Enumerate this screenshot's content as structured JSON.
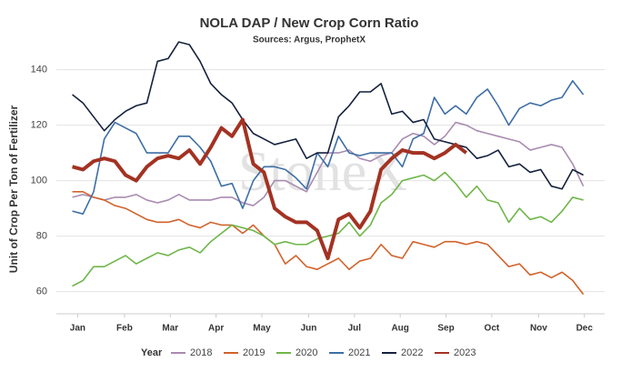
{
  "chart_data": {
    "type": "line",
    "title": "NOLA DAP / New Crop Corn Ratio",
    "subtitle": "Sources: Argus, ProphetX",
    "y_label": "Unit of Crop Per Ton of Fertilizer",
    "watermark": "StoneX",
    "legend_title": "Year",
    "legend": "bottom",
    "grid": true,
    "xlim": [
      0.5,
      52
    ],
    "xticks": [
      {
        "value": 2.5,
        "label": "Jan"
      },
      {
        "value": 6.9,
        "label": "Feb"
      },
      {
        "value": 11.2,
        "label": "Mar"
      },
      {
        "value": 15.5,
        "label": "Apr"
      },
      {
        "value": 19.8,
        "label": "May"
      },
      {
        "value": 24.2,
        "label": "Jun"
      },
      {
        "value": 28.5,
        "label": "Jul"
      },
      {
        "value": 32.8,
        "label": "Aug"
      },
      {
        "value": 37.1,
        "label": "Sep"
      },
      {
        "value": 41.4,
        "label": "Oct"
      },
      {
        "value": 45.8,
        "label": "Nov"
      },
      {
        "value": 50.1,
        "label": "Dec"
      }
    ],
    "ylim": [
      52,
      152
    ],
    "yticks": [
      60,
      80,
      100,
      120,
      140
    ],
    "x": [
      2,
      3,
      4,
      5,
      6,
      7,
      8,
      9,
      10,
      11,
      12,
      13,
      14,
      15,
      16,
      17,
      18,
      19,
      20,
      21,
      22,
      23,
      24,
      25,
      26,
      27,
      28,
      29,
      30,
      31,
      32,
      33,
      34,
      35,
      36,
      37,
      38,
      39,
      40,
      41,
      42,
      43,
      44,
      45,
      46,
      47,
      48,
      49,
      50
    ],
    "series": [
      {
        "name": "2018",
        "color": "#a98bb0",
        "width": 1.6,
        "values": [
          94,
          95,
          94,
          93,
          94,
          94,
          95,
          93,
          92,
          93,
          95,
          93,
          93,
          93,
          94,
          94,
          92,
          91,
          94,
          100,
          100,
          98,
          96,
          103,
          110,
          110,
          111,
          108,
          107,
          109,
          110,
          115,
          117,
          116,
          113,
          116,
          121,
          120,
          118,
          117,
          116,
          115,
          114,
          111,
          112,
          113,
          112,
          106,
          98
        ]
      },
      {
        "name": "2019",
        "color": "#d2622b",
        "width": 1.6,
        "values": [
          96,
          96,
          94,
          93,
          91,
          90,
          88,
          86,
          85,
          85,
          86,
          84,
          83,
          85,
          84,
          84,
          81,
          84,
          80,
          77,
          70,
          73,
          69,
          68,
          70,
          72,
          68,
          71,
          72,
          77,
          73,
          72,
          78,
          77,
          76,
          78,
          78,
          77,
          78,
          77,
          73,
          69,
          70,
          66,
          67,
          65,
          67,
          64,
          59
        ]
      },
      {
        "name": "2020",
        "color": "#6fb64a",
        "width": 1.6,
        "values": [
          62,
          64,
          69,
          69,
          71,
          73,
          70,
          72,
          74,
          73,
          75,
          76,
          74,
          78,
          81,
          84,
          83,
          82,
          80,
          77,
          78,
          77,
          77,
          79,
          80,
          81,
          85,
          80,
          84,
          92,
          95,
          100,
          101,
          102,
          100,
          103,
          99,
          94,
          98,
          93,
          92,
          85,
          90,
          86,
          87,
          85,
          89,
          94,
          93
        ]
      },
      {
        "name": "2021",
        "color": "#3d6ea5",
        "width": 1.6,
        "values": [
          89,
          88,
          96,
          115,
          121,
          119,
          117,
          110,
          110,
          110,
          116,
          116,
          112,
          107,
          98,
          99,
          90,
          100,
          105,
          105,
          104,
          101,
          97,
          110,
          105,
          116,
          110,
          109,
          110,
          110,
          110,
          105,
          115,
          117,
          130,
          124,
          127,
          124,
          130,
          133,
          127,
          120,
          126,
          128,
          127,
          129,
          130,
          136,
          131
        ]
      },
      {
        "name": "2022",
        "color": "#14213d",
        "width": 1.6,
        "values": [
          131,
          128,
          123,
          118,
          122,
          125,
          127,
          128,
          143,
          144,
          150,
          149,
          143,
          135,
          131,
          128,
          122,
          117,
          115,
          113,
          114,
          115,
          108,
          110,
          110,
          123,
          127,
          132,
          132,
          135,
          124,
          125,
          121,
          122,
          115,
          114,
          113,
          112,
          108,
          109,
          111,
          105,
          106,
          103,
          104,
          98,
          97,
          104,
          102
        ]
      },
      {
        "name": "2023",
        "color": "#a33222",
        "width": 4,
        "values": [
          105,
          104,
          107,
          108,
          107,
          102,
          100,
          105,
          108,
          109,
          108,
          111,
          106,
          112,
          119,
          116,
          122,
          106,
          103,
          90,
          87,
          85,
          85,
          82,
          72,
          86,
          88,
          83,
          89,
          104,
          108,
          111,
          110,
          110,
          108,
          110,
          113,
          110,
          null,
          null,
          null,
          null,
          null,
          null,
          null,
          null,
          null,
          null,
          null
        ]
      }
    ]
  }
}
